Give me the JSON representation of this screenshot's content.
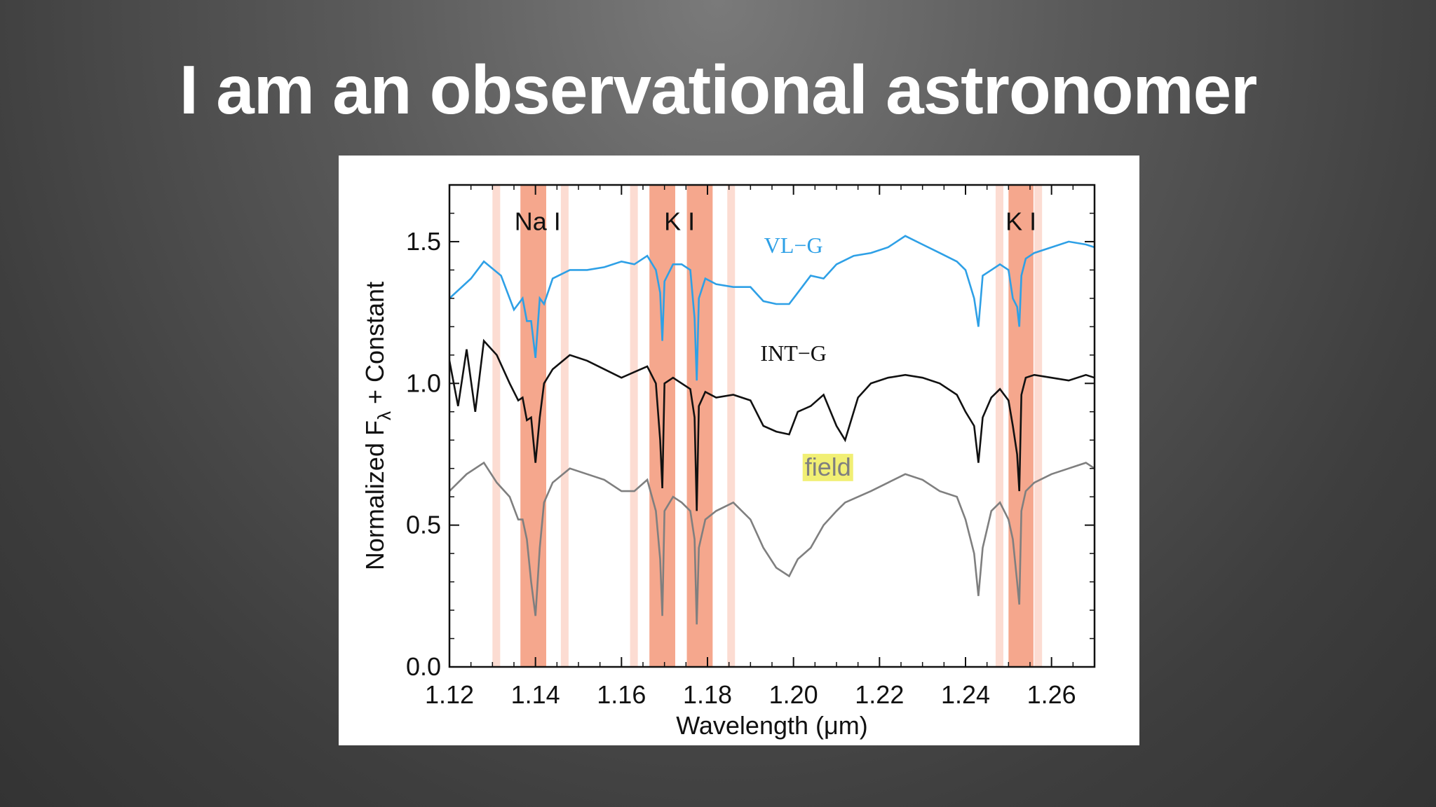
{
  "slide": {
    "title": "I am an observational astronomer"
  },
  "chart_data": {
    "type": "line",
    "xlabel": "Wavelength (μm)",
    "ylabel": "Normalized Fλ + Constant",
    "xlim": [
      1.12,
      1.27
    ],
    "ylim": [
      0.0,
      1.7
    ],
    "x_ticks": [
      1.12,
      1.14,
      1.16,
      1.18,
      1.2,
      1.22,
      1.24,
      1.26
    ],
    "x_tick_labels": [
      "1.12",
      "1.14",
      "1.16",
      "1.18",
      "1.20",
      "1.22",
      "1.24",
      "1.26"
    ],
    "y_ticks": [
      0.0,
      0.5,
      1.0,
      1.5
    ],
    "y_tick_labels": [
      "0.0",
      "0.5",
      "1.0",
      "1.5"
    ],
    "line_labels": [
      {
        "name": "Na I",
        "x": 1.1405,
        "y": 1.57
      },
      {
        "name": "K I",
        "x": 1.1735,
        "y": 1.57
      },
      {
        "name": "K I",
        "x": 1.2529,
        "y": 1.57
      }
    ],
    "absorption_bands": [
      {
        "x0": 1.1365,
        "x1": 1.1425,
        "strength": "strong"
      },
      {
        "x0": 1.1665,
        "x1": 1.1725,
        "strength": "strong"
      },
      {
        "x0": 1.1752,
        "x1": 1.1812,
        "strength": "strong"
      },
      {
        "x0": 1.25,
        "x1": 1.2558,
        "strength": "strong"
      },
      {
        "x0": 1.13,
        "x1": 1.1318,
        "strength": "weak"
      },
      {
        "x0": 1.1459,
        "x1": 1.1477,
        "strength": "weak"
      },
      {
        "x0": 1.162,
        "x1": 1.1638,
        "strength": "weak"
      },
      {
        "x0": 1.1846,
        "x1": 1.1864,
        "strength": "weak"
      },
      {
        "x0": 1.247,
        "x1": 1.2488,
        "strength": "weak"
      },
      {
        "x0": 1.256,
        "x1": 1.2578,
        "strength": "weak"
      }
    ],
    "band_colors": {
      "strong": "#f5a78d",
      "weak": "#fcdcd2"
    },
    "series": [
      {
        "name": "VL−G",
        "color": "#2ea0e6",
        "label_style": "serif",
        "label_pos": {
          "x": 1.2,
          "y": 1.46
        },
        "x": [
          1.12,
          1.125,
          1.128,
          1.132,
          1.135,
          1.137,
          1.138,
          1.139,
          1.14,
          1.141,
          1.142,
          1.144,
          1.148,
          1.152,
          1.156,
          1.16,
          1.163,
          1.166,
          1.168,
          1.169,
          1.1695,
          1.17,
          1.172,
          1.174,
          1.176,
          1.177,
          1.1775,
          1.178,
          1.1795,
          1.182,
          1.186,
          1.19,
          1.193,
          1.196,
          1.199,
          1.201,
          1.204,
          1.207,
          1.21,
          1.214,
          1.218,
          1.222,
          1.226,
          1.23,
          1.234,
          1.238,
          1.24,
          1.242,
          1.243,
          1.244,
          1.246,
          1.248,
          1.25,
          1.251,
          1.252,
          1.2525,
          1.253,
          1.254,
          1.256,
          1.26,
          1.264,
          1.268,
          1.27
        ],
        "y": [
          1.3,
          1.37,
          1.43,
          1.38,
          1.26,
          1.3,
          1.22,
          1.22,
          1.09,
          1.3,
          1.28,
          1.37,
          1.4,
          1.4,
          1.41,
          1.43,
          1.42,
          1.45,
          1.4,
          1.32,
          1.15,
          1.36,
          1.42,
          1.42,
          1.4,
          1.23,
          1.01,
          1.3,
          1.37,
          1.35,
          1.34,
          1.34,
          1.29,
          1.28,
          1.28,
          1.32,
          1.38,
          1.37,
          1.42,
          1.45,
          1.46,
          1.48,
          1.52,
          1.49,
          1.46,
          1.43,
          1.4,
          1.3,
          1.2,
          1.38,
          1.4,
          1.42,
          1.4,
          1.3,
          1.27,
          1.2,
          1.38,
          1.44,
          1.46,
          1.48,
          1.5,
          1.49,
          1.48
        ]
      },
      {
        "name": "INT−G",
        "color": "#111111",
        "label_style": "serif",
        "label_pos": {
          "x": 1.2,
          "y": 1.08
        },
        "x": [
          1.12,
          1.122,
          1.124,
          1.126,
          1.128,
          1.131,
          1.134,
          1.136,
          1.137,
          1.138,
          1.139,
          1.14,
          1.141,
          1.142,
          1.144,
          1.148,
          1.152,
          1.156,
          1.16,
          1.163,
          1.166,
          1.168,
          1.169,
          1.1695,
          1.17,
          1.172,
          1.174,
          1.176,
          1.177,
          1.1775,
          1.178,
          1.1795,
          1.182,
          1.186,
          1.19,
          1.193,
          1.196,
          1.199,
          1.201,
          1.204,
          1.207,
          1.21,
          1.212,
          1.215,
          1.218,
          1.222,
          1.226,
          1.23,
          1.234,
          1.238,
          1.24,
          1.242,
          1.243,
          1.244,
          1.246,
          1.248,
          1.25,
          1.251,
          1.252,
          1.2525,
          1.253,
          1.254,
          1.256,
          1.26,
          1.264,
          1.268,
          1.27
        ],
        "y": [
          1.08,
          0.92,
          1.12,
          0.9,
          1.15,
          1.1,
          1.0,
          0.94,
          0.95,
          0.87,
          0.88,
          0.72,
          0.88,
          1.0,
          1.05,
          1.1,
          1.08,
          1.05,
          1.02,
          1.04,
          1.06,
          1.0,
          0.8,
          0.63,
          1.0,
          1.02,
          1.0,
          0.98,
          0.88,
          0.55,
          0.92,
          0.97,
          0.95,
          0.96,
          0.94,
          0.85,
          0.83,
          0.82,
          0.9,
          0.92,
          0.96,
          0.85,
          0.8,
          0.95,
          1.0,
          1.02,
          1.03,
          1.02,
          1.0,
          0.96,
          0.9,
          0.85,
          0.72,
          0.88,
          0.95,
          0.98,
          0.94,
          0.85,
          0.75,
          0.62,
          0.96,
          1.02,
          1.03,
          1.02,
          1.01,
          1.03,
          1.02
        ]
      },
      {
        "name": "field",
        "color": "#7f7f7f",
        "label_style": "sans-highlight",
        "highlight_color": "#f1ef74",
        "label_pos": {
          "x": 1.208,
          "y": 0.675
        },
        "x": [
          1.12,
          1.124,
          1.128,
          1.131,
          1.134,
          1.136,
          1.137,
          1.138,
          1.139,
          1.14,
          1.141,
          1.142,
          1.144,
          1.148,
          1.152,
          1.156,
          1.16,
          1.163,
          1.166,
          1.168,
          1.169,
          1.1695,
          1.17,
          1.172,
          1.174,
          1.176,
          1.177,
          1.1775,
          1.178,
          1.1795,
          1.182,
          1.186,
          1.19,
          1.193,
          1.196,
          1.199,
          1.201,
          1.204,
          1.207,
          1.21,
          1.212,
          1.215,
          1.218,
          1.222,
          1.226,
          1.23,
          1.234,
          1.238,
          1.24,
          1.242,
          1.243,
          1.244,
          1.246,
          1.248,
          1.25,
          1.251,
          1.252,
          1.2525,
          1.253,
          1.254,
          1.256,
          1.26,
          1.264,
          1.268,
          1.27
        ],
        "y": [
          0.62,
          0.68,
          0.72,
          0.65,
          0.6,
          0.52,
          0.52,
          0.45,
          0.3,
          0.18,
          0.42,
          0.58,
          0.65,
          0.7,
          0.68,
          0.66,
          0.62,
          0.62,
          0.66,
          0.55,
          0.38,
          0.18,
          0.55,
          0.6,
          0.58,
          0.55,
          0.45,
          0.15,
          0.42,
          0.52,
          0.55,
          0.58,
          0.52,
          0.42,
          0.35,
          0.32,
          0.38,
          0.42,
          0.5,
          0.55,
          0.58,
          0.6,
          0.62,
          0.65,
          0.68,
          0.66,
          0.62,
          0.6,
          0.52,
          0.4,
          0.25,
          0.42,
          0.55,
          0.58,
          0.52,
          0.45,
          0.3,
          0.22,
          0.55,
          0.62,
          0.65,
          0.68,
          0.7,
          0.72,
          0.7
        ]
      }
    ]
  }
}
